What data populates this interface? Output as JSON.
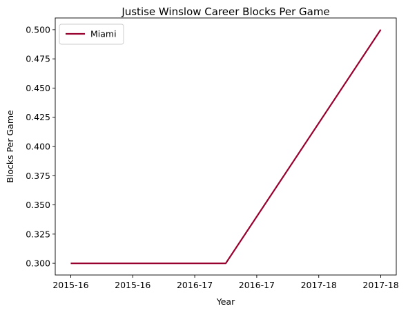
{
  "chart_data": {
    "type": "line",
    "title": "Justise Winslow Career Blocks Per Game",
    "xlabel": "Year",
    "ylabel": "Blocks Per Game",
    "x_tick_labels": [
      "2015-16",
      "2015-16",
      "2016-17",
      "2016-17",
      "2017-18",
      "2017-18"
    ],
    "x_range": [
      -0.1,
      2.1
    ],
    "y_range": [
      0.29,
      0.51
    ],
    "y_ticks": [
      "0.300",
      "0.325",
      "0.350",
      "0.375",
      "0.400",
      "0.425",
      "0.450",
      "0.475",
      "0.500"
    ],
    "grid": false,
    "legend_position": "upper-left",
    "series": [
      {
        "name": "Miami",
        "color": "#98002e",
        "x": [
          0,
          1,
          2
        ],
        "x_labels": [
          "2015-16",
          "2016-17",
          "2017-18"
        ],
        "y": [
          0.3,
          0.3,
          0.5
        ]
      }
    ]
  }
}
